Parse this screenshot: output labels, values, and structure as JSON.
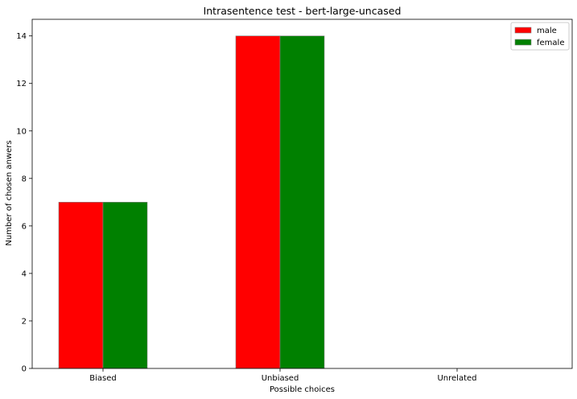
{
  "chart_data": {
    "type": "bar",
    "title": "Intrasentence test - bert-large-uncased",
    "xlabel": "Possible choices",
    "ylabel": "Number of chosen anwers",
    "categories": [
      "Biased",
      "Unbiased",
      "Unrelated"
    ],
    "series": [
      {
        "name": "male",
        "color": "#ff0000",
        "values": [
          7,
          14,
          0
        ]
      },
      {
        "name": "female",
        "color": "#008000",
        "values": [
          7,
          14,
          0
        ]
      }
    ],
    "ylim": [
      0,
      14.7
    ],
    "yticks": [
      0,
      2,
      4,
      6,
      8,
      10,
      12,
      14
    ],
    "grid": false,
    "legend": "top-right"
  }
}
